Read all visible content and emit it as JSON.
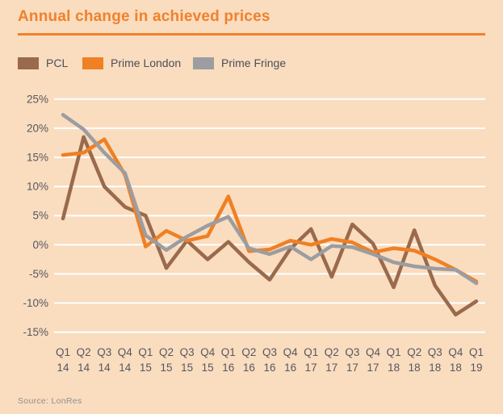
{
  "header": {
    "title": "Annual change in achieved prices"
  },
  "legend": {
    "items": [
      {
        "label": "PCL",
        "color": "#9A6A4C"
      },
      {
        "label": "Prime London",
        "color": "#EF8023"
      },
      {
        "label": "Prime Fringe",
        "color": "#9C9DA0"
      }
    ]
  },
  "source": {
    "text": "Source: LonRes"
  },
  "colors": {
    "background": "#FADCBF",
    "accent_orange": "#F0812B",
    "gridline": "#FFFFFF",
    "axis_text": "#55585F"
  },
  "chart_data": {
    "type": "line",
    "title": "Annual change in achieved prices",
    "unit": "%",
    "grid": true,
    "legend_position": "top",
    "ylim": [
      -15,
      25
    ],
    "categories": [
      {
        "quarter": "Q1",
        "year": "14"
      },
      {
        "quarter": "Q2",
        "year": "14"
      },
      {
        "quarter": "Q3",
        "year": "14"
      },
      {
        "quarter": "Q4",
        "year": "14"
      },
      {
        "quarter": "Q1",
        "year": "15"
      },
      {
        "quarter": "Q2",
        "year": "15"
      },
      {
        "quarter": "Q3",
        "year": "15"
      },
      {
        "quarter": "Q4",
        "year": "15"
      },
      {
        "quarter": "Q1",
        "year": "16"
      },
      {
        "quarter": "Q2",
        "year": "16"
      },
      {
        "quarter": "Q3",
        "year": "16"
      },
      {
        "quarter": "Q4",
        "year": "16"
      },
      {
        "quarter": "Q1",
        "year": "17"
      },
      {
        "quarter": "Q2",
        "year": "17"
      },
      {
        "quarter": "Q3",
        "year": "17"
      },
      {
        "quarter": "Q4",
        "year": "17"
      },
      {
        "quarter": "Q1",
        "year": "18"
      },
      {
        "quarter": "Q2",
        "year": "18"
      },
      {
        "quarter": "Q3",
        "year": "18"
      },
      {
        "quarter": "Q4",
        "year": "18"
      },
      {
        "quarter": "Q1",
        "year": "19"
      }
    ],
    "yticks": {
      "values": [
        25,
        20,
        15,
        10,
        5,
        0,
        -5,
        -10,
        -15
      ],
      "labels": [
        "25%",
        "20%",
        "15%",
        "10%",
        "5%",
        "0%",
        "-5%",
        "-10%",
        "-15%"
      ]
    },
    "series": [
      {
        "name": "PCL",
        "color": "#9A6A4C",
        "values": [
          4.5,
          18.5,
          10.0,
          6.5,
          5.0,
          -4.0,
          0.7,
          -2.5,
          0.5,
          -3.0,
          -6.0,
          -0.7,
          2.7,
          -5.5,
          3.5,
          0.2,
          -7.3,
          2.5,
          -7.0,
          -12.0,
          -9.7
        ]
      },
      {
        "name": "Prime London",
        "color": "#EF8023",
        "values": [
          15.4,
          15.8,
          18.1,
          12.0,
          -0.3,
          2.4,
          0.7,
          1.5,
          8.3,
          -1.1,
          -0.8,
          0.7,
          0.0,
          1.0,
          0.4,
          -1.3,
          -0.6,
          -1.0,
          -2.5,
          -4.3,
          -6.3
        ]
      },
      {
        "name": "Prime Fringe",
        "color": "#9C9DA0",
        "values": [
          22.3,
          19.8,
          15.8,
          12.3,
          1.6,
          -0.9,
          1.4,
          3.3,
          4.8,
          -0.6,
          -1.6,
          -0.3,
          -2.5,
          -0.2,
          -0.4,
          -1.6,
          -3.0,
          -3.7,
          -4.1,
          -4.3,
          -6.6
        ]
      }
    ]
  }
}
